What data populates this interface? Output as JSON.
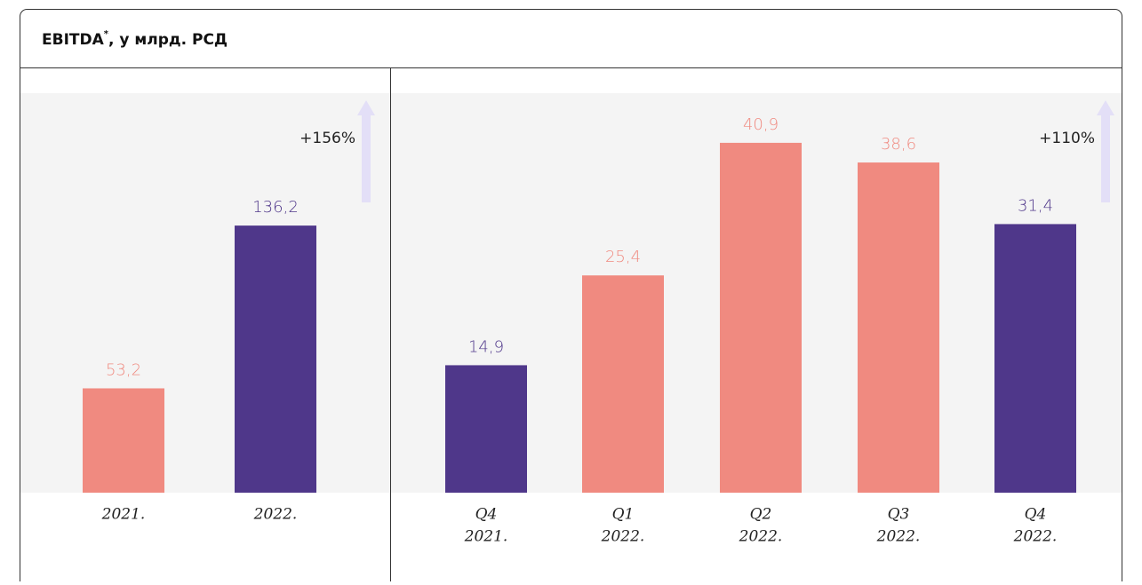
{
  "title": "EBITDA",
  "title_mark": "*",
  "title_rest": ", у млрд. РСД",
  "chart_data": [
    {
      "type": "bar",
      "categories": [
        "2021.",
        "2022."
      ],
      "values": [
        53.2,
        136.2
      ],
      "value_labels": [
        "53,2",
        "136,2"
      ],
      "colors": [
        "#f08a80",
        "#4f378a"
      ],
      "ylim": [
        0,
        203.7
      ],
      "annotation": "+156%"
    },
    {
      "type": "bar",
      "categories": [
        [
          "Q4",
          "2021."
        ],
        [
          "Q1",
          "2022."
        ],
        [
          "Q2",
          "2022."
        ],
        [
          "Q3",
          "2022."
        ],
        [
          "Q4",
          "2022."
        ]
      ],
      "values": [
        14.9,
        25.4,
        40.9,
        38.6,
        31.4
      ],
      "value_labels": [
        "14,9",
        "25,4",
        "40,9",
        "38,6",
        "31,4"
      ],
      "colors": [
        "#4f378a",
        "#f08a80",
        "#f08a80",
        "#f08a80",
        "#4f378a"
      ],
      "ylim": [
        0,
        46.7
      ],
      "annotation": "+110%"
    }
  ]
}
